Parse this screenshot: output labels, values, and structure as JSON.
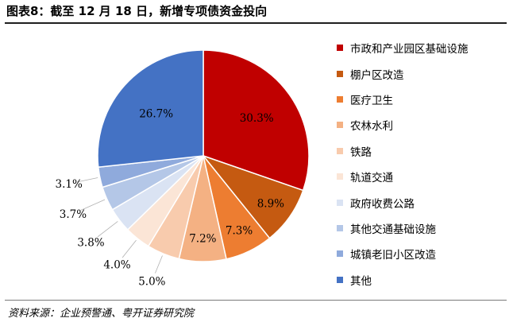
{
  "title": "图表8：截至 12 月 18 日，新增专项债资金投向",
  "source": "资料来源：企业预警通、粤开证券研究院",
  "chart_data": {
    "type": "pie",
    "title": "图表8：截至 12 月 18 日，新增专项债资金投向",
    "legend_position": "right",
    "start_angle": "12 o'clock, clockwise",
    "slices": [
      {
        "label": "市政和产业园区基础设施",
        "value": 30.3,
        "value_label": "30.3%",
        "color": "#C00000"
      },
      {
        "label": "棚户区改造",
        "value": 8.9,
        "value_label": "8.9%",
        "color": "#C55A11"
      },
      {
        "label": "医疗卫生",
        "value": 7.3,
        "value_label": "7.3%",
        "color": "#ED7D31"
      },
      {
        "label": "农林水利",
        "value": 7.2,
        "value_label": "7.2%",
        "color": "#F4B183"
      },
      {
        "label": "铁路",
        "value": 5.0,
        "value_label": "5.0%",
        "color": "#F8CBAD"
      },
      {
        "label": "轨道交通",
        "value": 4.0,
        "value_label": "4.0%",
        "color": "#FBE5D6"
      },
      {
        "label": "政府收费公路",
        "value": 3.8,
        "value_label": "3.8%",
        "color": "#DAE3F3"
      },
      {
        "label": "其他交通基础设施",
        "value": 3.7,
        "value_label": "3.7%",
        "color": "#B4C7E7"
      },
      {
        "label": "城镇老旧小区改造",
        "value": 3.1,
        "value_label": "3.1%",
        "color": "#8FAADC"
      },
      {
        "label": "其他",
        "value": 26.7,
        "value_label": "26.7%",
        "color": "#4472C4"
      }
    ]
  }
}
